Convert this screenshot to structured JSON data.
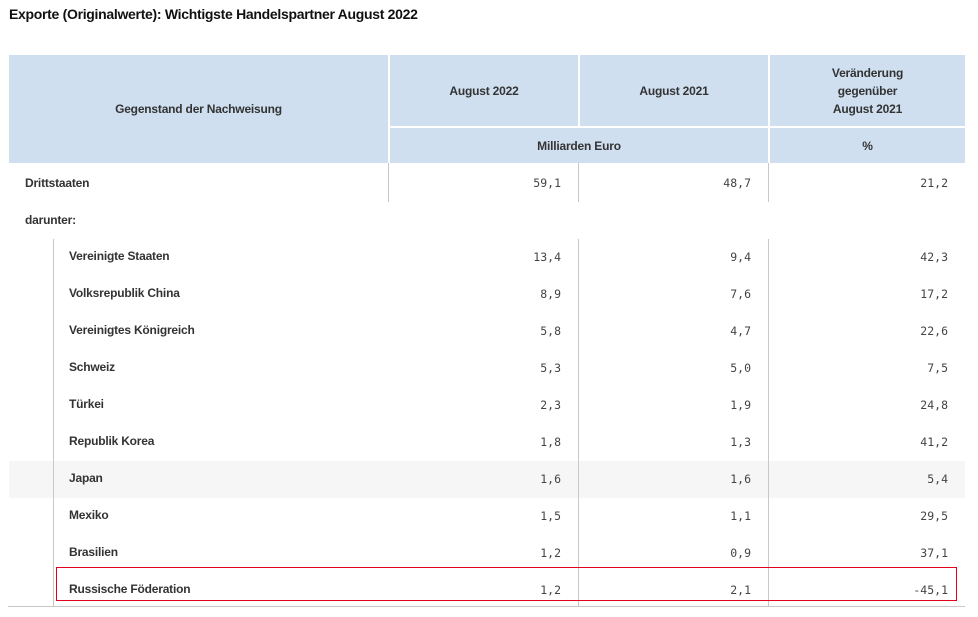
{
  "title": "Exporte (Originalwerte): Wichtigste Handelspartner August 2022",
  "header": {
    "col0": "Gegenstand der Nachweisung",
    "col1": "August 2022",
    "col2": "August 2021",
    "col3_line1": "Veränderung",
    "col3_line2": "gegenüber",
    "col3_line3": "August 2021",
    "unit_value": "Milliarden Euro",
    "unit_pct": "%"
  },
  "total": {
    "label": "Drittstaaten",
    "v2022": "59,1",
    "v2021": "48,7",
    "change": "21,2"
  },
  "subheading": "darunter:",
  "rows": [
    {
      "label": "Vereinigte Staaten",
      "v2022": "13,4",
      "v2021": "9,4",
      "change": "42,3"
    },
    {
      "label": "Volksrepublik China",
      "v2022": "8,9",
      "v2021": "7,6",
      "change": "17,2"
    },
    {
      "label": "Vereinigtes Königreich",
      "v2022": "5,8",
      "v2021": "4,7",
      "change": "22,6"
    },
    {
      "label": "Schweiz",
      "v2022": "5,3",
      "v2021": "5,0",
      "change": "7,5"
    },
    {
      "label": "Türkei",
      "v2022": "2,3",
      "v2021": "1,9",
      "change": "24,8"
    },
    {
      "label": "Republik Korea",
      "v2022": "1,8",
      "v2021": "1,3",
      "change": "41,2"
    },
    {
      "label": "Japan",
      "v2022": "1,6",
      "v2021": "1,6",
      "change": "5,4"
    },
    {
      "label": "Mexiko",
      "v2022": "1,5",
      "v2021": "1,1",
      "change": "29,5"
    },
    {
      "label": "Brasilien",
      "v2022": "1,2",
      "v2021": "0,9",
      "change": "37,1"
    },
    {
      "label": "Russische Föderation",
      "v2022": "1,2",
      "v2021": "2,1",
      "change": "-45,1"
    }
  ],
  "colors": {
    "header_bg": "#cfdff0",
    "highlight_border": "#e3001b",
    "hover_row": "#f6f6f6"
  }
}
